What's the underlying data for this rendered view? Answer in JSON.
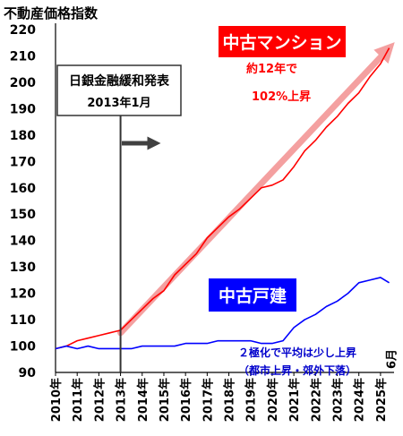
{
  "chart_data": {
    "type": "line",
    "title": "不動産価格指数",
    "ylim": [
      90,
      220
    ],
    "xlim": [
      2010.0,
      2025.5
    ],
    "y_ticks": [
      90,
      100,
      110,
      120,
      130,
      140,
      150,
      160,
      170,
      180,
      190,
      200,
      210,
      220
    ],
    "x_ticks": [
      "2010年",
      "2011年",
      "2012年",
      "2013年",
      "2014年",
      "2015年",
      "2016年",
      "2017年",
      "2018年",
      "2019年",
      "2020年",
      "2021年",
      "2022年",
      "2023年",
      "2024年",
      "2025年"
    ],
    "x_end_label": "6月",
    "grid": false,
    "series": [
      {
        "name": "中古マンション",
        "color": "#ff0000",
        "x": [
          2010.0,
          2010.5,
          2011.0,
          2011.5,
          2012.0,
          2012.5,
          2013.0,
          2013.5,
          2014.0,
          2014.5,
          2015.0,
          2015.5,
          2016.0,
          2016.5,
          2017.0,
          2017.5,
          2018.0,
          2018.5,
          2019.0,
          2019.5,
          2020.0,
          2020.5,
          2021.0,
          2021.5,
          2022.0,
          2022.5,
          2023.0,
          2023.5,
          2024.0,
          2024.5,
          2025.0,
          2025.4
        ],
        "y": [
          99,
          100,
          102,
          103,
          104,
          105,
          106,
          110,
          114,
          118,
          121,
          127,
          131,
          135,
          141,
          145,
          149,
          152,
          156,
          160,
          161,
          163,
          168,
          174,
          178,
          183,
          187,
          192,
          196,
          202,
          207,
          213
        ]
      },
      {
        "name": "中古戸建",
        "color": "#0000ff",
        "x": [
          2010.0,
          2010.5,
          2011.0,
          2011.5,
          2012.0,
          2012.5,
          2013.0,
          2013.5,
          2014.0,
          2014.5,
          2015.0,
          2015.5,
          2016.0,
          2016.5,
          2017.0,
          2017.5,
          2018.0,
          2018.5,
          2019.0,
          2019.5,
          2020.0,
          2020.5,
          2021.0,
          2021.5,
          2022.0,
          2022.5,
          2023.0,
          2023.5,
          2024.0,
          2024.5,
          2025.0,
          2025.4
        ],
        "y": [
          99,
          100,
          99,
          100,
          99,
          99,
          99,
          99,
          100,
          100,
          100,
          100,
          101,
          101,
          101,
          102,
          102,
          102,
          102,
          101,
          101,
          102,
          107,
          110,
          112,
          115,
          117,
          120,
          124,
          125,
          126,
          124
        ]
      }
    ],
    "trend_arrow": {
      "from": [
        2013.0,
        105
      ],
      "to": [
        2025.4,
        213
      ],
      "color": "#f4a0a0"
    },
    "vline": {
      "x": 2013.0
    }
  },
  "annotations": {
    "policy_box_title": "日銀金融緩和発表",
    "policy_box_date": "2013年1月",
    "mansion_label": "中古マンション",
    "mansion_note_1": "約12年で",
    "mansion_note_2": "102%上昇",
    "house_label": "中古戸建",
    "house_note_1": "２極化で平均は少し上昇",
    "house_note_2": "（都市上昇・郊外下落）"
  }
}
